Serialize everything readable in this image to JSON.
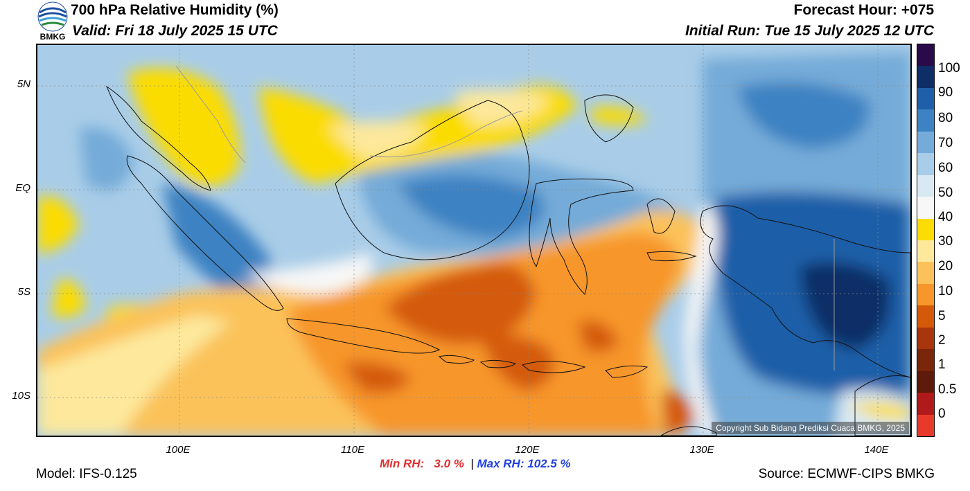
{
  "header": {
    "title": "700 hPa Relative Humidity (%)",
    "valid": "Valid: Fri 18 July 2025 15 UTC",
    "forecast_hour": "Forecast Hour: +075",
    "initial_run": "Initial Run: Tue 15 July 2025 12 UTC"
  },
  "logo": {
    "text": "BMKG",
    "icon": "bmkg-logo-icon"
  },
  "map": {
    "lat_labels": [
      "5N",
      "EQ",
      "5S",
      "10S"
    ],
    "lon_labels": [
      "100E",
      "110E",
      "120E",
      "130E",
      "140E"
    ],
    "copyright": "Copyright Sub Bidang Prediksi Cuaca BMKG, 2025"
  },
  "colorbar": {
    "labels": [
      "100",
      "90",
      "80",
      "70",
      "60",
      "50",
      "40",
      "30",
      "20",
      "10",
      "5",
      "2",
      "1",
      "0.5",
      "0"
    ],
    "colors": [
      "#2b0a4a",
      "#0f2d66",
      "#1f5ea8",
      "#3d82c2",
      "#74abd8",
      "#a9cde8",
      "#d8e9f4",
      "#f7f7f7",
      "#fbdc05",
      "#fde89b",
      "#fbc25a",
      "#f7962a",
      "#d45a0a",
      "#a8350c",
      "#7a260b",
      "#5e1a0a",
      "#b01a1a",
      "#e83a2a"
    ]
  },
  "footer": {
    "min_rh_label": "Min RH:",
    "min_rh_value": "3.0 %",
    "separator": "|",
    "max_rh_label": "Max RH:",
    "max_rh_value": "102.5 %",
    "model": "Model: IFS-0.125",
    "source": "Source: ECMWF-CIPS BMKG"
  }
}
